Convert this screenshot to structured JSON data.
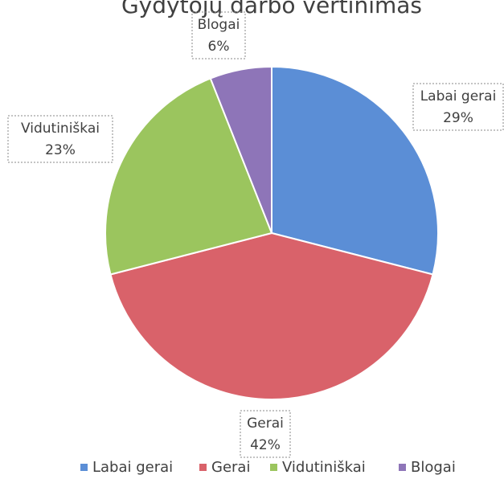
{
  "chart_data": {
    "type": "pie",
    "title": "Gydytojų darbo vertinimas",
    "categories": [
      "Labai gerai",
      "Gerai",
      "Vidutiniškai",
      "Blogai"
    ],
    "values": [
      29,
      42,
      23,
      6
    ],
    "value_labels": [
      "29%",
      "42%",
      "23%",
      "6%"
    ],
    "colors": [
      "#5b8ed6",
      "#d9626a",
      "#9bc55e",
      "#8e75b8"
    ],
    "legend": "bottom"
  }
}
